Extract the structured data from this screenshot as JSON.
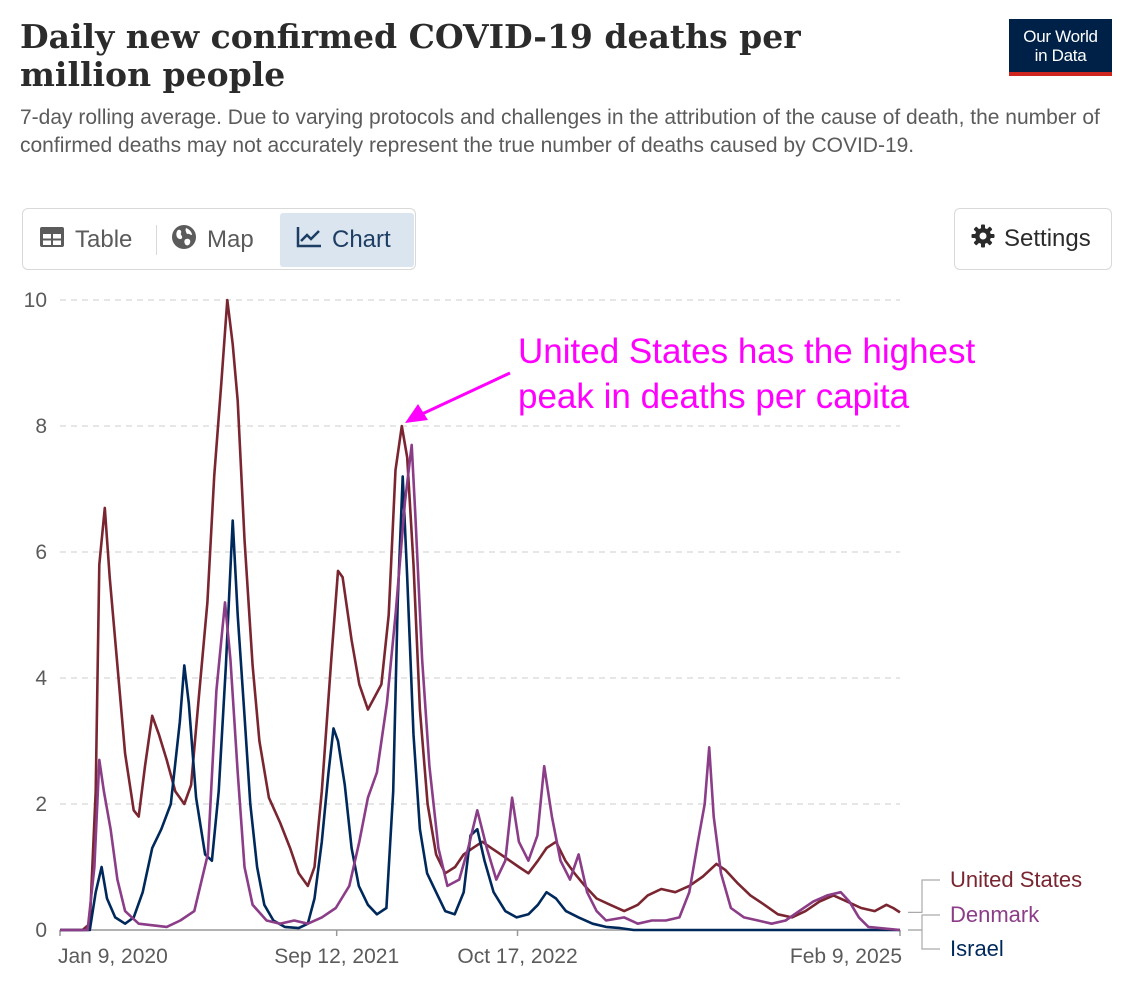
{
  "header": {
    "title": "Daily new confirmed COVID-19 deaths per million people",
    "subtitle": "7-day rolling average. Due to varying protocols and challenges in the attribution of the cause of death, the number of confirmed deaths may not accurately represent the true number of deaths caused by COVID-19.",
    "logo_line1": "Our World",
    "logo_line2": "in Data"
  },
  "tabs": {
    "table_label": "Table",
    "map_label": "Map",
    "chart_label": "Chart",
    "active": "Chart"
  },
  "settings_label": "Settings",
  "icons": {
    "table": "table-icon",
    "map": "globe-icon",
    "chart": "line-chart-icon",
    "settings": "gear-icon"
  },
  "chart_data": {
    "type": "line",
    "title": "Daily new confirmed COVID-19 deaths per million people",
    "xlabel": "",
    "ylabel": "",
    "ylim": [
      0,
      10
    ],
    "yticks": [
      "0",
      "2",
      "4",
      "6",
      "8",
      "10"
    ],
    "xticks": [
      "Jan 9, 2020",
      "Sep 12, 2021",
      "Oct 17, 2022",
      "Feb 9, 2025"
    ],
    "xlim": [
      "2020-01-09",
      "2025-02-09"
    ],
    "grid": "horizontal dashed",
    "legend_placement": "right-end-labels",
    "annotation": {
      "line1": "United States has the highest",
      "line2": "peak in deaths per capita",
      "color": "#ff00ff"
    },
    "series": [
      {
        "name": "United States",
        "color": "#7a2631",
        "points": [
          [
            "2020-01-09",
            0
          ],
          [
            "2020-02-28",
            0
          ],
          [
            "2020-03-15",
            0.1
          ],
          [
            "2020-03-28",
            2.2
          ],
          [
            "2020-04-05",
            5.8
          ],
          [
            "2020-04-17",
            6.7
          ],
          [
            "2020-04-28",
            5.6
          ],
          [
            "2020-05-15",
            4.2
          ],
          [
            "2020-06-01",
            2.8
          ],
          [
            "2020-06-20",
            1.9
          ],
          [
            "2020-07-01",
            1.8
          ],
          [
            "2020-07-15",
            2.6
          ],
          [
            "2020-07-31",
            3.4
          ],
          [
            "2020-08-15",
            3.1
          ],
          [
            "2020-09-01",
            2.7
          ],
          [
            "2020-09-20",
            2.2
          ],
          [
            "2020-10-10",
            2.0
          ],
          [
            "2020-10-25",
            2.3
          ],
          [
            "2020-11-10",
            3.6
          ],
          [
            "2020-11-30",
            5.2
          ],
          [
            "2020-12-15",
            7.2
          ],
          [
            "2020-12-31",
            8.7
          ],
          [
            "2021-01-13",
            10.0
          ],
          [
            "2021-01-25",
            9.3
          ],
          [
            "2021-02-05",
            8.4
          ],
          [
            "2021-02-20",
            6.2
          ],
          [
            "2021-03-10",
            4.2
          ],
          [
            "2021-03-25",
            3.0
          ],
          [
            "2021-04-15",
            2.1
          ],
          [
            "2021-05-10",
            1.7
          ],
          [
            "2021-06-01",
            1.3
          ],
          [
            "2021-06-20",
            0.9
          ],
          [
            "2021-07-10",
            0.7
          ],
          [
            "2021-07-25",
            1.0
          ],
          [
            "2021-08-10",
            2.2
          ],
          [
            "2021-08-31",
            4.3
          ],
          [
            "2021-09-15",
            5.7
          ],
          [
            "2021-09-25",
            5.6
          ],
          [
            "2021-10-15",
            4.6
          ],
          [
            "2021-11-01",
            3.9
          ],
          [
            "2021-11-20",
            3.5
          ],
          [
            "2021-12-05",
            3.7
          ],
          [
            "2021-12-20",
            3.9
          ],
          [
            "2022-01-05",
            5.0
          ],
          [
            "2022-01-20",
            7.3
          ],
          [
            "2022-02-03",
            8.0
          ],
          [
            "2022-02-15",
            7.5
          ],
          [
            "2022-03-01",
            5.8
          ],
          [
            "2022-03-15",
            3.5
          ],
          [
            "2022-04-01",
            2.0
          ],
          [
            "2022-04-20",
            1.2
          ],
          [
            "2022-05-10",
            0.9
          ],
          [
            "2022-06-01",
            1.0
          ],
          [
            "2022-06-20",
            1.2
          ],
          [
            "2022-07-10",
            1.3
          ],
          [
            "2022-07-31",
            1.4
          ],
          [
            "2022-08-20",
            1.3
          ],
          [
            "2022-09-10",
            1.2
          ],
          [
            "2022-09-30",
            1.1
          ],
          [
            "2022-10-20",
            1.0
          ],
          [
            "2022-11-10",
            0.9
          ],
          [
            "2022-12-01",
            1.1
          ],
          [
            "2022-12-20",
            1.3
          ],
          [
            "2023-01-10",
            1.4
          ],
          [
            "2023-01-31",
            1.1
          ],
          [
            "2023-02-20",
            0.9
          ],
          [
            "2023-03-15",
            0.7
          ],
          [
            "2023-04-10",
            0.5
          ],
          [
            "2023-05-10",
            0.4
          ],
          [
            "2023-06-10",
            0.3
          ],
          [
            "2023-07-10",
            0.4
          ],
          [
            "2023-08-01",
            0.55
          ],
          [
            "2023-08-31",
            0.65
          ],
          [
            "2023-10-01",
            0.6
          ],
          [
            "2023-11-01",
            0.7
          ],
          [
            "2023-12-01",
            0.85
          ],
          [
            "2023-12-31",
            1.05
          ],
          [
            "2024-01-20",
            0.95
          ],
          [
            "2024-02-15",
            0.75
          ],
          [
            "2024-03-15",
            0.55
          ],
          [
            "2024-04-15",
            0.4
          ],
          [
            "2024-05-15",
            0.25
          ],
          [
            "2024-06-15",
            0.2
          ],
          [
            "2024-07-15",
            0.3
          ],
          [
            "2024-08-15",
            0.45
          ],
          [
            "2024-09-15",
            0.55
          ],
          [
            "2024-10-15",
            0.45
          ],
          [
            "2024-11-15",
            0.35
          ],
          [
            "2024-12-15",
            0.3
          ],
          [
            "2025-01-10",
            0.4
          ],
          [
            "2025-01-25",
            0.35
          ],
          [
            "2025-02-09",
            0.28
          ]
        ]
      },
      {
        "name": "Denmark",
        "color": "#8b3d88",
        "points": [
          [
            "2020-01-09",
            0
          ],
          [
            "2020-03-10",
            0
          ],
          [
            "2020-03-25",
            1.0
          ],
          [
            "2020-04-05",
            2.7
          ],
          [
            "2020-04-15",
            2.2
          ],
          [
            "2020-04-30",
            1.6
          ],
          [
            "2020-05-15",
            0.8
          ],
          [
            "2020-06-01",
            0.3
          ],
          [
            "2020-07-01",
            0.1
          ],
          [
            "2020-09-01",
            0.05
          ],
          [
            "2020-10-01",
            0.15
          ],
          [
            "2020-11-01",
            0.3
          ],
          [
            "2020-12-01",
            1.2
          ],
          [
            "2020-12-20",
            3.8
          ],
          [
            "2021-01-08",
            5.2
          ],
          [
            "2021-01-20",
            4.3
          ],
          [
            "2021-02-05",
            2.5
          ],
          [
            "2021-02-20",
            1.0
          ],
          [
            "2021-03-10",
            0.4
          ],
          [
            "2021-04-10",
            0.15
          ],
          [
            "2021-05-10",
            0.1
          ],
          [
            "2021-06-10",
            0.15
          ],
          [
            "2021-07-10",
            0.1
          ],
          [
            "2021-08-10",
            0.2
          ],
          [
            "2021-09-10",
            0.35
          ],
          [
            "2021-10-10",
            0.7
          ],
          [
            "2021-11-01",
            1.4
          ],
          [
            "2021-11-20",
            2.1
          ],
          [
            "2021-12-10",
            2.5
          ],
          [
            "2022-01-01",
            3.6
          ],
          [
            "2022-01-20",
            5.0
          ],
          [
            "2022-02-10",
            6.8
          ],
          [
            "2022-02-25",
            7.7
          ],
          [
            "2022-03-05",
            6.6
          ],
          [
            "2022-03-20",
            4.3
          ],
          [
            "2022-04-05",
            2.6
          ],
          [
            "2022-04-25",
            1.3
          ],
          [
            "2022-05-15",
            0.7
          ],
          [
            "2022-06-10",
            0.8
          ],
          [
            "2022-06-30",
            1.3
          ],
          [
            "2022-07-20",
            1.9
          ],
          [
            "2022-08-10",
            1.3
          ],
          [
            "2022-08-31",
            0.8
          ],
          [
            "2022-09-20",
            1.1
          ],
          [
            "2022-10-05",
            2.1
          ],
          [
            "2022-10-20",
            1.4
          ],
          [
            "2022-11-10",
            1.1
          ],
          [
            "2022-11-30",
            1.5
          ],
          [
            "2022-12-15",
            2.6
          ],
          [
            "2023-01-01",
            1.8
          ],
          [
            "2023-01-20",
            1.1
          ],
          [
            "2023-02-10",
            0.8
          ],
          [
            "2023-03-01",
            1.2
          ],
          [
            "2023-03-20",
            0.6
          ],
          [
            "2023-04-10",
            0.3
          ],
          [
            "2023-05-01",
            0.15
          ],
          [
            "2023-06-10",
            0.2
          ],
          [
            "2023-07-10",
            0.1
          ],
          [
            "2023-08-10",
            0.15
          ],
          [
            "2023-09-10",
            0.15
          ],
          [
            "2023-10-10",
            0.2
          ],
          [
            "2023-11-01",
            0.6
          ],
          [
            "2023-11-20",
            1.4
          ],
          [
            "2023-12-05",
            2.0
          ],
          [
            "2023-12-15",
            2.9
          ],
          [
            "2023-12-25",
            1.8
          ],
          [
            "2024-01-10",
            0.9
          ],
          [
            "2024-02-01",
            0.35
          ],
          [
            "2024-03-01",
            0.2
          ],
          [
            "2024-04-01",
            0.15
          ],
          [
            "2024-05-01",
            0.1
          ],
          [
            "2024-06-01",
            0.15
          ],
          [
            "2024-07-01",
            0.3
          ],
          [
            "2024-08-01",
            0.45
          ],
          [
            "2024-09-01",
            0.55
          ],
          [
            "2024-10-01",
            0.6
          ],
          [
            "2024-10-20",
            0.45
          ],
          [
            "2024-11-10",
            0.2
          ],
          [
            "2024-12-01",
            0.05
          ],
          [
            "2025-02-09",
            0
          ]
        ]
      },
      {
        "name": "Israel",
        "color": "#00295b",
        "points": [
          [
            "2020-01-09",
            0
          ],
          [
            "2020-03-15",
            0
          ],
          [
            "2020-03-28",
            0.6
          ],
          [
            "2020-04-10",
            1.0
          ],
          [
            "2020-04-22",
            0.5
          ],
          [
            "2020-05-10",
            0.2
          ],
          [
            "2020-06-01",
            0.1
          ],
          [
            "2020-06-20",
            0.2
          ],
          [
            "2020-07-10",
            0.6
          ],
          [
            "2020-07-31",
            1.3
          ],
          [
            "2020-08-20",
            1.6
          ],
          [
            "2020-09-10",
            2.0
          ],
          [
            "2020-09-30",
            3.3
          ],
          [
            "2020-10-10",
            4.2
          ],
          [
            "2020-10-20",
            3.6
          ],
          [
            "2020-11-05",
            2.1
          ],
          [
            "2020-11-25",
            1.2
          ],
          [
            "2020-12-10",
            1.1
          ],
          [
            "2020-12-25",
            2.2
          ],
          [
            "2021-01-10",
            4.2
          ],
          [
            "2021-01-25",
            6.5
          ],
          [
            "2021-02-05",
            5.0
          ],
          [
            "2021-02-20",
            3.4
          ],
          [
            "2021-03-05",
            2.0
          ],
          [
            "2021-03-20",
            1.0
          ],
          [
            "2021-04-05",
            0.4
          ],
          [
            "2021-04-25",
            0.15
          ],
          [
            "2021-05-20",
            0.05
          ],
          [
            "2021-06-20",
            0.03
          ],
          [
            "2021-07-10",
            0.1
          ],
          [
            "2021-07-25",
            0.5
          ],
          [
            "2021-08-10",
            1.4
          ],
          [
            "2021-08-25",
            2.5
          ],
          [
            "2021-09-05",
            3.2
          ],
          [
            "2021-09-15",
            3.0
          ],
          [
            "2021-09-30",
            2.3
          ],
          [
            "2021-10-15",
            1.3
          ],
          [
            "2021-10-31",
            0.7
          ],
          [
            "2021-11-20",
            0.4
          ],
          [
            "2021-12-10",
            0.25
          ],
          [
            "2021-12-31",
            0.35
          ],
          [
            "2022-01-15",
            2.2
          ],
          [
            "2022-01-25",
            5.2
          ],
          [
            "2022-02-05",
            7.2
          ],
          [
            "2022-02-15",
            5.6
          ],
          [
            "2022-03-01",
            3.1
          ],
          [
            "2022-03-15",
            1.6
          ],
          [
            "2022-03-31",
            0.9
          ],
          [
            "2022-04-20",
            0.6
          ],
          [
            "2022-05-10",
            0.3
          ],
          [
            "2022-05-31",
            0.25
          ],
          [
            "2022-06-20",
            0.6
          ],
          [
            "2022-07-05",
            1.5
          ],
          [
            "2022-07-20",
            1.6
          ],
          [
            "2022-08-05",
            1.1
          ],
          [
            "2022-08-25",
            0.6
          ],
          [
            "2022-09-20",
            0.3
          ],
          [
            "2022-10-15",
            0.2
          ],
          [
            "2022-11-10",
            0.25
          ],
          [
            "2022-12-01",
            0.4
          ],
          [
            "2022-12-20",
            0.6
          ],
          [
            "2023-01-10",
            0.5
          ],
          [
            "2023-02-01",
            0.3
          ],
          [
            "2023-03-01",
            0.2
          ],
          [
            "2023-04-01",
            0.1
          ],
          [
            "2023-05-01",
            0.05
          ],
          [
            "2023-06-01",
            0.03
          ],
          [
            "2023-07-01",
            0
          ],
          [
            "2025-02-09",
            0
          ]
        ]
      }
    ]
  }
}
